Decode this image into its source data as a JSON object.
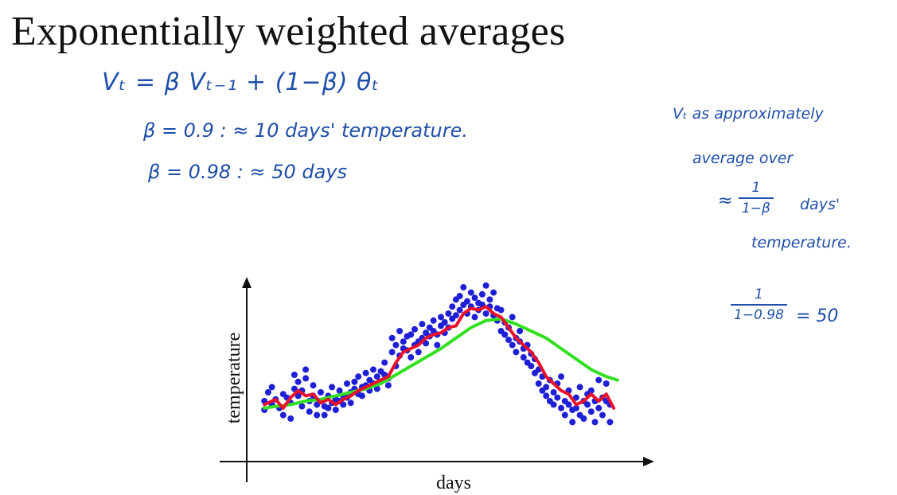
{
  "title": "Exponentially weighted averages",
  "equations": {
    "main": "Vₜ = β Vₜ₋₁   +   (1−β) θₜ",
    "beta1": "β = 0.9     :   ≈ 10 days' temperature.",
    "beta2": "β = 0.98   :   ≈ 50 days"
  },
  "notes": {
    "line1": "Vₜ  as  approximately",
    "line2": "average  over",
    "approx": "≈",
    "frac_num": "1",
    "frac_den": "1−β",
    "days": "days'",
    "line4": "temperature.",
    "frac2_num": "1",
    "frac2_den": "1−0.98",
    "frac2_result": "= 50"
  },
  "colors": {
    "ink": "#1f4fa8",
    "points": "#1f1fd6",
    "red": "#e8122a",
    "green": "#33e021"
  },
  "chart_data": {
    "type": "scatter",
    "xlabel": "days",
    "ylabel": "temperature",
    "x_range": [
      0,
      100
    ],
    "y_range": [
      0,
      100
    ],
    "points": [
      [
        3,
        30
      ],
      [
        3,
        25
      ],
      [
        4,
        35
      ],
      [
        5,
        38
      ],
      [
        5,
        28
      ],
      [
        6,
        31
      ],
      [
        7,
        26
      ],
      [
        8,
        22
      ],
      [
        8,
        34
      ],
      [
        9,
        32
      ],
      [
        10,
        20
      ],
      [
        10,
        29
      ],
      [
        11,
        45
      ],
      [
        11,
        37
      ],
      [
        12,
        33
      ],
      [
        12,
        41
      ],
      [
        13,
        27
      ],
      [
        13,
        36
      ],
      [
        14,
        48
      ],
      [
        14,
        43
      ],
      [
        15,
        30
      ],
      [
        15,
        24
      ],
      [
        16,
        39
      ],
      [
        16,
        33
      ],
      [
        17,
        28
      ],
      [
        17,
        22
      ],
      [
        18,
        35
      ],
      [
        18,
        30
      ],
      [
        19,
        27
      ],
      [
        19,
        22
      ],
      [
        20,
        33
      ],
      [
        20,
        26
      ],
      [
        21,
        29
      ],
      [
        21,
        38
      ],
      [
        22,
        31
      ],
      [
        22,
        25
      ],
      [
        23,
        36
      ],
      [
        23,
        30
      ],
      [
        24,
        28
      ],
      [
        24,
        33
      ],
      [
        25,
        40
      ],
      [
        25,
        32
      ],
      [
        26,
        35
      ],
      [
        26,
        29
      ],
      [
        27,
        41
      ],
      [
        27,
        37
      ],
      [
        28,
        34
      ],
      [
        28,
        44
      ],
      [
        29,
        38
      ],
      [
        29,
        33
      ],
      [
        30,
        46
      ],
      [
        30,
        39
      ],
      [
        31,
        36
      ],
      [
        31,
        42
      ],
      [
        32,
        48
      ],
      [
        32,
        40
      ],
      [
        33,
        44
      ],
      [
        33,
        37
      ],
      [
        34,
        41
      ],
      [
        34,
        47
      ],
      [
        35,
        52
      ],
      [
        35,
        45
      ],
      [
        36,
        39
      ],
      [
        36,
        43
      ],
      [
        37,
        58
      ],
      [
        37,
        66
      ],
      [
        38,
        62
      ],
      [
        38,
        50
      ],
      [
        39,
        70
      ],
      [
        39,
        56
      ],
      [
        40,
        64
      ],
      [
        40,
        60
      ],
      [
        41,
        59
      ],
      [
        41,
        67
      ],
      [
        42,
        55
      ],
      [
        42,
        68
      ],
      [
        43,
        62
      ],
      [
        43,
        71
      ],
      [
        44,
        58
      ],
      [
        44,
        64
      ],
      [
        45,
        74
      ],
      [
        45,
        66
      ],
      [
        46,
        69
      ],
      [
        46,
        63
      ],
      [
        47,
        72
      ],
      [
        47,
        67
      ],
      [
        48,
        76
      ],
      [
        48,
        70
      ],
      [
        49,
        68
      ],
      [
        49,
        62
      ],
      [
        50,
        73
      ],
      [
        50,
        78
      ],
      [
        51,
        69
      ],
      [
        51,
        75
      ],
      [
        52,
        80
      ],
      [
        52,
        72
      ],
      [
        53,
        77
      ],
      [
        53,
        84
      ],
      [
        54,
        79
      ],
      [
        54,
        88
      ],
      [
        55,
        90
      ],
      [
        55,
        82
      ],
      [
        56,
        85
      ],
      [
        56,
        95
      ],
      [
        57,
        80
      ],
      [
        57,
        87
      ],
      [
        58,
        92
      ],
      [
        58,
        84
      ],
      [
        59,
        89
      ],
      [
        59,
        78
      ],
      [
        60,
        86
      ],
      [
        60,
        82
      ],
      [
        61,
        91
      ],
      [
        61,
        85
      ],
      [
        62,
        96
      ],
      [
        62,
        80
      ],
      [
        63,
        88
      ],
      [
        63,
        84
      ],
      [
        64,
        79
      ],
      [
        64,
        92
      ],
      [
        65,
        83
      ],
      [
        65,
        76
      ],
      [
        66,
        70
      ],
      [
        66,
        82
      ],
      [
        67,
        75
      ],
      [
        67,
        68
      ],
      [
        68,
        72
      ],
      [
        68,
        65
      ],
      [
        69,
        78
      ],
      [
        69,
        62
      ],
      [
        70,
        66
      ],
      [
        70,
        58
      ],
      [
        71,
        70
      ],
      [
        71,
        64
      ],
      [
        72,
        60
      ],
      [
        72,
        55
      ],
      [
        73,
        62
      ],
      [
        73,
        52
      ],
      [
        74,
        57
      ],
      [
        74,
        50
      ],
      [
        75,
        54
      ],
      [
        75,
        46
      ],
      [
        76,
        48
      ],
      [
        76,
        40
      ],
      [
        77,
        44
      ],
      [
        77,
        36
      ],
      [
        78,
        38
      ],
      [
        78,
        33
      ],
      [
        79,
        42
      ],
      [
        79,
        30
      ],
      [
        80,
        35
      ],
      [
        80,
        28
      ],
      [
        81,
        40
      ],
      [
        81,
        32
      ],
      [
        82,
        26
      ],
      [
        82,
        44
      ],
      [
        83,
        30
      ],
      [
        83,
        22
      ],
      [
        84,
        36
      ],
      [
        84,
        28
      ],
      [
        85,
        25
      ],
      [
        85,
        18
      ],
      [
        86,
        32
      ],
      [
        86,
        26
      ],
      [
        87,
        38
      ],
      [
        87,
        22
      ],
      [
        88,
        30
      ],
      [
        88,
        20
      ],
      [
        89,
        34
      ],
      [
        89,
        28
      ],
      [
        90,
        24
      ],
      [
        90,
        36
      ],
      [
        91,
        30
      ],
      [
        91,
        18
      ],
      [
        92,
        26
      ],
      [
        92,
        42
      ],
      [
        93,
        32
      ],
      [
        93,
        22
      ],
      [
        94,
        40
      ],
      [
        94,
        30
      ],
      [
        95,
        28
      ],
      [
        95,
        18
      ]
    ],
    "red_line": [
      [
        3,
        28
      ],
      [
        6,
        31
      ],
      [
        8,
        26
      ],
      [
        10,
        32
      ],
      [
        12,
        36
      ],
      [
        14,
        33
      ],
      [
        16,
        34
      ],
      [
        18,
        29
      ],
      [
        20,
        31
      ],
      [
        22,
        28
      ],
      [
        24,
        31
      ],
      [
        26,
        33
      ],
      [
        28,
        36
      ],
      [
        30,
        38
      ],
      [
        32,
        40
      ],
      [
        34,
        42
      ],
      [
        36,
        44
      ],
      [
        38,
        52
      ],
      [
        40,
        58
      ],
      [
        42,
        60
      ],
      [
        44,
        62
      ],
      [
        46,
        66
      ],
      [
        48,
        68
      ],
      [
        50,
        69
      ],
      [
        52,
        72
      ],
      [
        54,
        73
      ],
      [
        56,
        80
      ],
      [
        58,
        83
      ],
      [
        60,
        82
      ],
      [
        62,
        84
      ],
      [
        64,
        80
      ],
      [
        66,
        78
      ],
      [
        68,
        72
      ],
      [
        70,
        66
      ],
      [
        72,
        62
      ],
      [
        74,
        58
      ],
      [
        76,
        52
      ],
      [
        78,
        44
      ],
      [
        80,
        40
      ],
      [
        82,
        36
      ],
      [
        84,
        34
      ],
      [
        86,
        28
      ],
      [
        88,
        30
      ],
      [
        90,
        34
      ],
      [
        92,
        30
      ],
      [
        94,
        34
      ],
      [
        96,
        26
      ]
    ],
    "green_line": [
      [
        3,
        26
      ],
      [
        6,
        27
      ],
      [
        10,
        28
      ],
      [
        14,
        30
      ],
      [
        18,
        31
      ],
      [
        22,
        33
      ],
      [
        26,
        35
      ],
      [
        30,
        37
      ],
      [
        34,
        40
      ],
      [
        38,
        45
      ],
      [
        42,
        50
      ],
      [
        46,
        55
      ],
      [
        50,
        60
      ],
      [
        54,
        66
      ],
      [
        58,
        72
      ],
      [
        62,
        76
      ],
      [
        66,
        77
      ],
      [
        70,
        74
      ],
      [
        74,
        70
      ],
      [
        78,
        66
      ],
      [
        82,
        60
      ],
      [
        86,
        54
      ],
      [
        90,
        48
      ],
      [
        94,
        44
      ],
      [
        97,
        42
      ]
    ]
  }
}
